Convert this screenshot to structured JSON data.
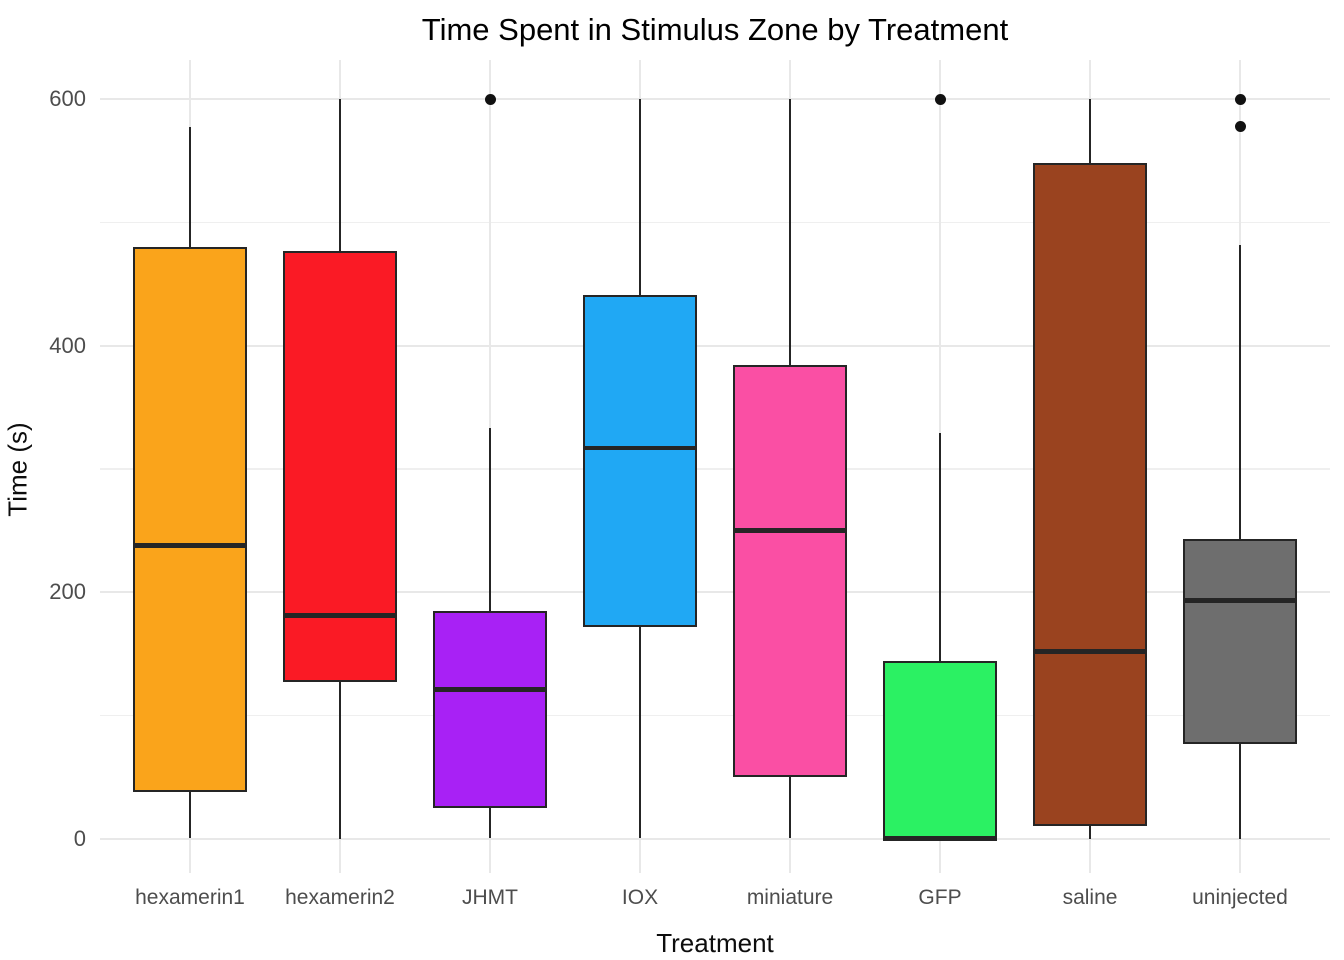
{
  "chart_data": {
    "type": "boxplot",
    "title": "Time Spent in Stimulus Zone by Treatment",
    "xlabel": "Treatment",
    "ylabel": "Time (s)",
    "y_ticks": [
      0,
      200,
      400,
      600
    ],
    "y_minor_gridlines": [
      100,
      300,
      500
    ],
    "ylim": [
      -28,
      632
    ],
    "grid": true,
    "legend": "none",
    "background_color": "#ffffff",
    "gridline_color": "#e8e8e8",
    "box_border_color": "#252525",
    "outlier_color": "#111111",
    "tick_label_color": "#4d4d4d",
    "categories": [
      "hexamerin1",
      "hexamerin2",
      "JHMT",
      "IOX",
      "miniature",
      "GFP",
      "saline",
      "uninjected"
    ],
    "series": [
      {
        "name": "hexamerin1",
        "color": "#faa41b",
        "min": 0,
        "q1": 38,
        "median": 238,
        "q3": 480,
        "max": 578,
        "outliers": []
      },
      {
        "name": "hexamerin2",
        "color": "#fa1a25",
        "min": 0,
        "q1": 127,
        "median": 181,
        "q3": 477,
        "max": 600,
        "outliers": []
      },
      {
        "name": "JHMT",
        "color": "#a821f5",
        "min": 0,
        "q1": 25,
        "median": 121,
        "q3": 185,
        "max": 333,
        "outliers": [
          600
        ]
      },
      {
        "name": "IOX",
        "color": "#20a8f4",
        "min": 0,
        "q1": 172,
        "median": 317,
        "q3": 441,
        "max": 600,
        "outliers": []
      },
      {
        "name": "miniature",
        "color": "#fa4fa4",
        "min": 0,
        "q1": 50,
        "median": 250,
        "q3": 384,
        "max": 600,
        "outliers": []
      },
      {
        "name": "GFP",
        "color": "#2bf163",
        "min": 0,
        "q1": 0,
        "median": 0,
        "q3": 144,
        "max": 329,
        "outliers": [
          600
        ]
      },
      {
        "name": "saline",
        "color": "#9a431f",
        "min": 0,
        "q1": 10,
        "median": 152,
        "q3": 548,
        "max": 600,
        "outliers": []
      },
      {
        "name": "uninjected",
        "color": "#6e6e6e",
        "min": 0,
        "q1": 77,
        "median": 193,
        "q3": 243,
        "max": 482,
        "outliers": [
          600,
          578
        ]
      }
    ]
  }
}
